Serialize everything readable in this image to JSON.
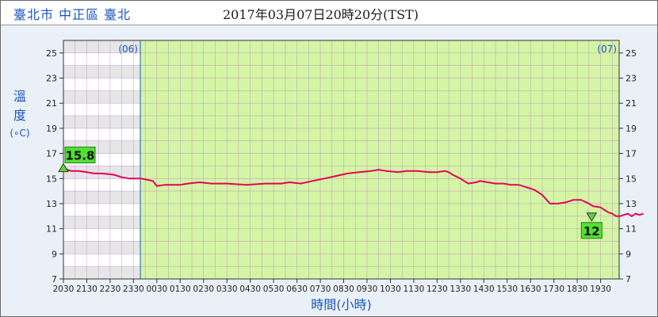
{
  "header": {
    "location": "臺北市 中正區 臺北",
    "timestamp": "2017年03月07日20時20分(TST)"
  },
  "colors": {
    "line": "#e8005a",
    "day_bg": "#d4f5a4",
    "grid": "#b26bd0",
    "axis_title": "#1a55c0",
    "label_bg": "#50e032"
  },
  "chart_data": {
    "type": "line",
    "title": "",
    "xlabel": "時間(小時)",
    "ylabel": "溫度",
    "yunit": "(∘C)",
    "ylim": [
      7,
      26
    ],
    "yticks": [
      7,
      9,
      11,
      13,
      15,
      17,
      19,
      21,
      23,
      25
    ],
    "xlim": [
      0,
      1430
    ],
    "xtick_labels": [
      "2030",
      "2130",
      "2230",
      "2330",
      "0030",
      "0130",
      "0230",
      "0330",
      "0430",
      "0530",
      "0630",
      "0730",
      "0830",
      "0930",
      "1030",
      "1130",
      "1230",
      "1330",
      "1430",
      "1530",
      "1630",
      "1730",
      "1830",
      "1930"
    ],
    "day_markers": [
      {
        "label": "(06)",
        "minute": 0
      },
      {
        "label": "(07)",
        "minute": 210
      }
    ],
    "max_label": "15.8",
    "min_label": "12",
    "series": [
      {
        "points": [
          [
            0,
            15.8
          ],
          [
            20,
            15.6
          ],
          [
            40,
            15.6
          ],
          [
            60,
            15.5
          ],
          [
            80,
            15.4
          ],
          [
            100,
            15.4
          ],
          [
            130,
            15.3
          ],
          [
            150,
            15.1
          ],
          [
            170,
            15.0
          ],
          [
            200,
            15.0
          ],
          [
            230,
            14.8
          ],
          [
            240,
            14.4
          ],
          [
            260,
            14.5
          ],
          [
            300,
            14.5
          ],
          [
            320,
            14.6
          ],
          [
            350,
            14.7
          ],
          [
            380,
            14.6
          ],
          [
            420,
            14.6
          ],
          [
            470,
            14.5
          ],
          [
            520,
            14.6
          ],
          [
            560,
            14.6
          ],
          [
            580,
            14.7
          ],
          [
            610,
            14.6
          ],
          [
            640,
            14.8
          ],
          [
            670,
            15.0
          ],
          [
            700,
            15.2
          ],
          [
            730,
            15.4
          ],
          [
            760,
            15.5
          ],
          [
            790,
            15.6
          ],
          [
            810,
            15.7
          ],
          [
            830,
            15.6
          ],
          [
            860,
            15.5
          ],
          [
            880,
            15.6
          ],
          [
            910,
            15.6
          ],
          [
            940,
            15.5
          ],
          [
            960,
            15.5
          ],
          [
            980,
            15.6
          ],
          [
            990,
            15.5
          ],
          [
            1000,
            15.3
          ],
          [
            1020,
            15.0
          ],
          [
            1040,
            14.6
          ],
          [
            1060,
            14.7
          ],
          [
            1070,
            14.8
          ],
          [
            1090,
            14.7
          ],
          [
            1110,
            14.6
          ],
          [
            1130,
            14.6
          ],
          [
            1150,
            14.5
          ],
          [
            1170,
            14.5
          ],
          [
            1200,
            14.2
          ],
          [
            1210,
            14.1
          ],
          [
            1220,
            13.9
          ],
          [
            1230,
            13.7
          ],
          [
            1250,
            13.0
          ],
          [
            1270,
            13.0
          ],
          [
            1290,
            13.1
          ],
          [
            1310,
            13.3
          ],
          [
            1330,
            13.3
          ],
          [
            1350,
            13.0
          ],
          [
            1360,
            12.8
          ],
          [
            1380,
            12.7
          ],
          [
            1390,
            12.5
          ],
          [
            1400,
            12.3
          ],
          [
            1410,
            12.2
          ],
          [
            1420,
            12.0
          ],
          [
            1430,
            12.0
          ],
          [
            1440,
            12.1
          ],
          [
            1450,
            12.2
          ],
          [
            1460,
            12.0
          ],
          [
            1470,
            12.2
          ],
          [
            1480,
            12.1
          ],
          [
            1490,
            12.2
          ]
        ]
      }
    ]
  }
}
